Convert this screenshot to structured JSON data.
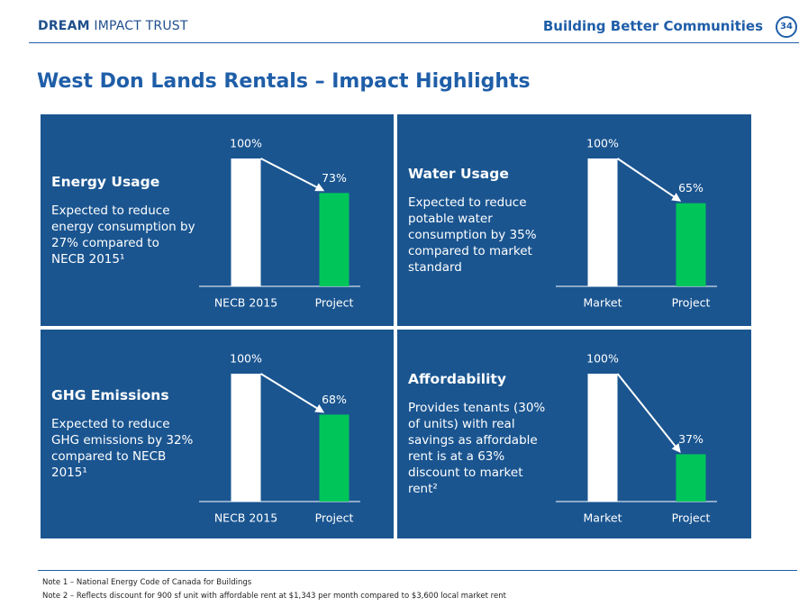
{
  "header": {
    "logo": "DREAM",
    "logo_suffix": "IMPACT TRUST",
    "tagline": "Building Better Communities",
    "page_number": "34"
  },
  "title": "West Don Lands Rentals – Impact Highlights",
  "chart_data": [
    {
      "type": "bar",
      "title": "Energy Usage",
      "description": "Expected to reduce energy consumption by 27% compared to NECB 2015¹",
      "categories": [
        "NECB 2015",
        "Project"
      ],
      "values": [
        100,
        73
      ],
      "value_labels": [
        "100%",
        "73%"
      ],
      "colors": [
        "#ffffff",
        "#00c65a"
      ],
      "ylim": [
        0,
        100
      ]
    },
    {
      "type": "bar",
      "title": "Water Usage",
      "description": "Expected to reduce potable water consumption by 35% compared to market standard",
      "categories": [
        "Market",
        "Project"
      ],
      "values": [
        100,
        65
      ],
      "value_labels": [
        "100%",
        "65%"
      ],
      "colors": [
        "#ffffff",
        "#00c65a"
      ],
      "ylim": [
        0,
        100
      ]
    },
    {
      "type": "bar",
      "title": "GHG Emissions",
      "description": "Expected to reduce GHG emissions by 32% compared to NECB 2015¹",
      "categories": [
        "NECB 2015",
        "Project"
      ],
      "values": [
        100,
        68
      ],
      "value_labels": [
        "100%",
        "68%"
      ],
      "colors": [
        "#ffffff",
        "#00c65a"
      ],
      "ylim": [
        0,
        100
      ]
    },
    {
      "type": "bar",
      "title": "Affordability",
      "description": "Provides tenants (30% of units) with real savings as affordable rent is at a 63% discount to market rent²",
      "categories": [
        "Market",
        "Project"
      ],
      "values": [
        100,
        37
      ],
      "value_labels": [
        "100%",
        "37%"
      ],
      "colors": [
        "#ffffff",
        "#00c65a"
      ],
      "ylim": [
        0,
        100
      ]
    }
  ],
  "notes": [
    "Note 1 – National Energy Code of Canada for Buildings",
    "Note 2 – Reflects discount for 900 sf unit with affordable rent at $1,343 per month compared to $3,600 local market rent"
  ]
}
